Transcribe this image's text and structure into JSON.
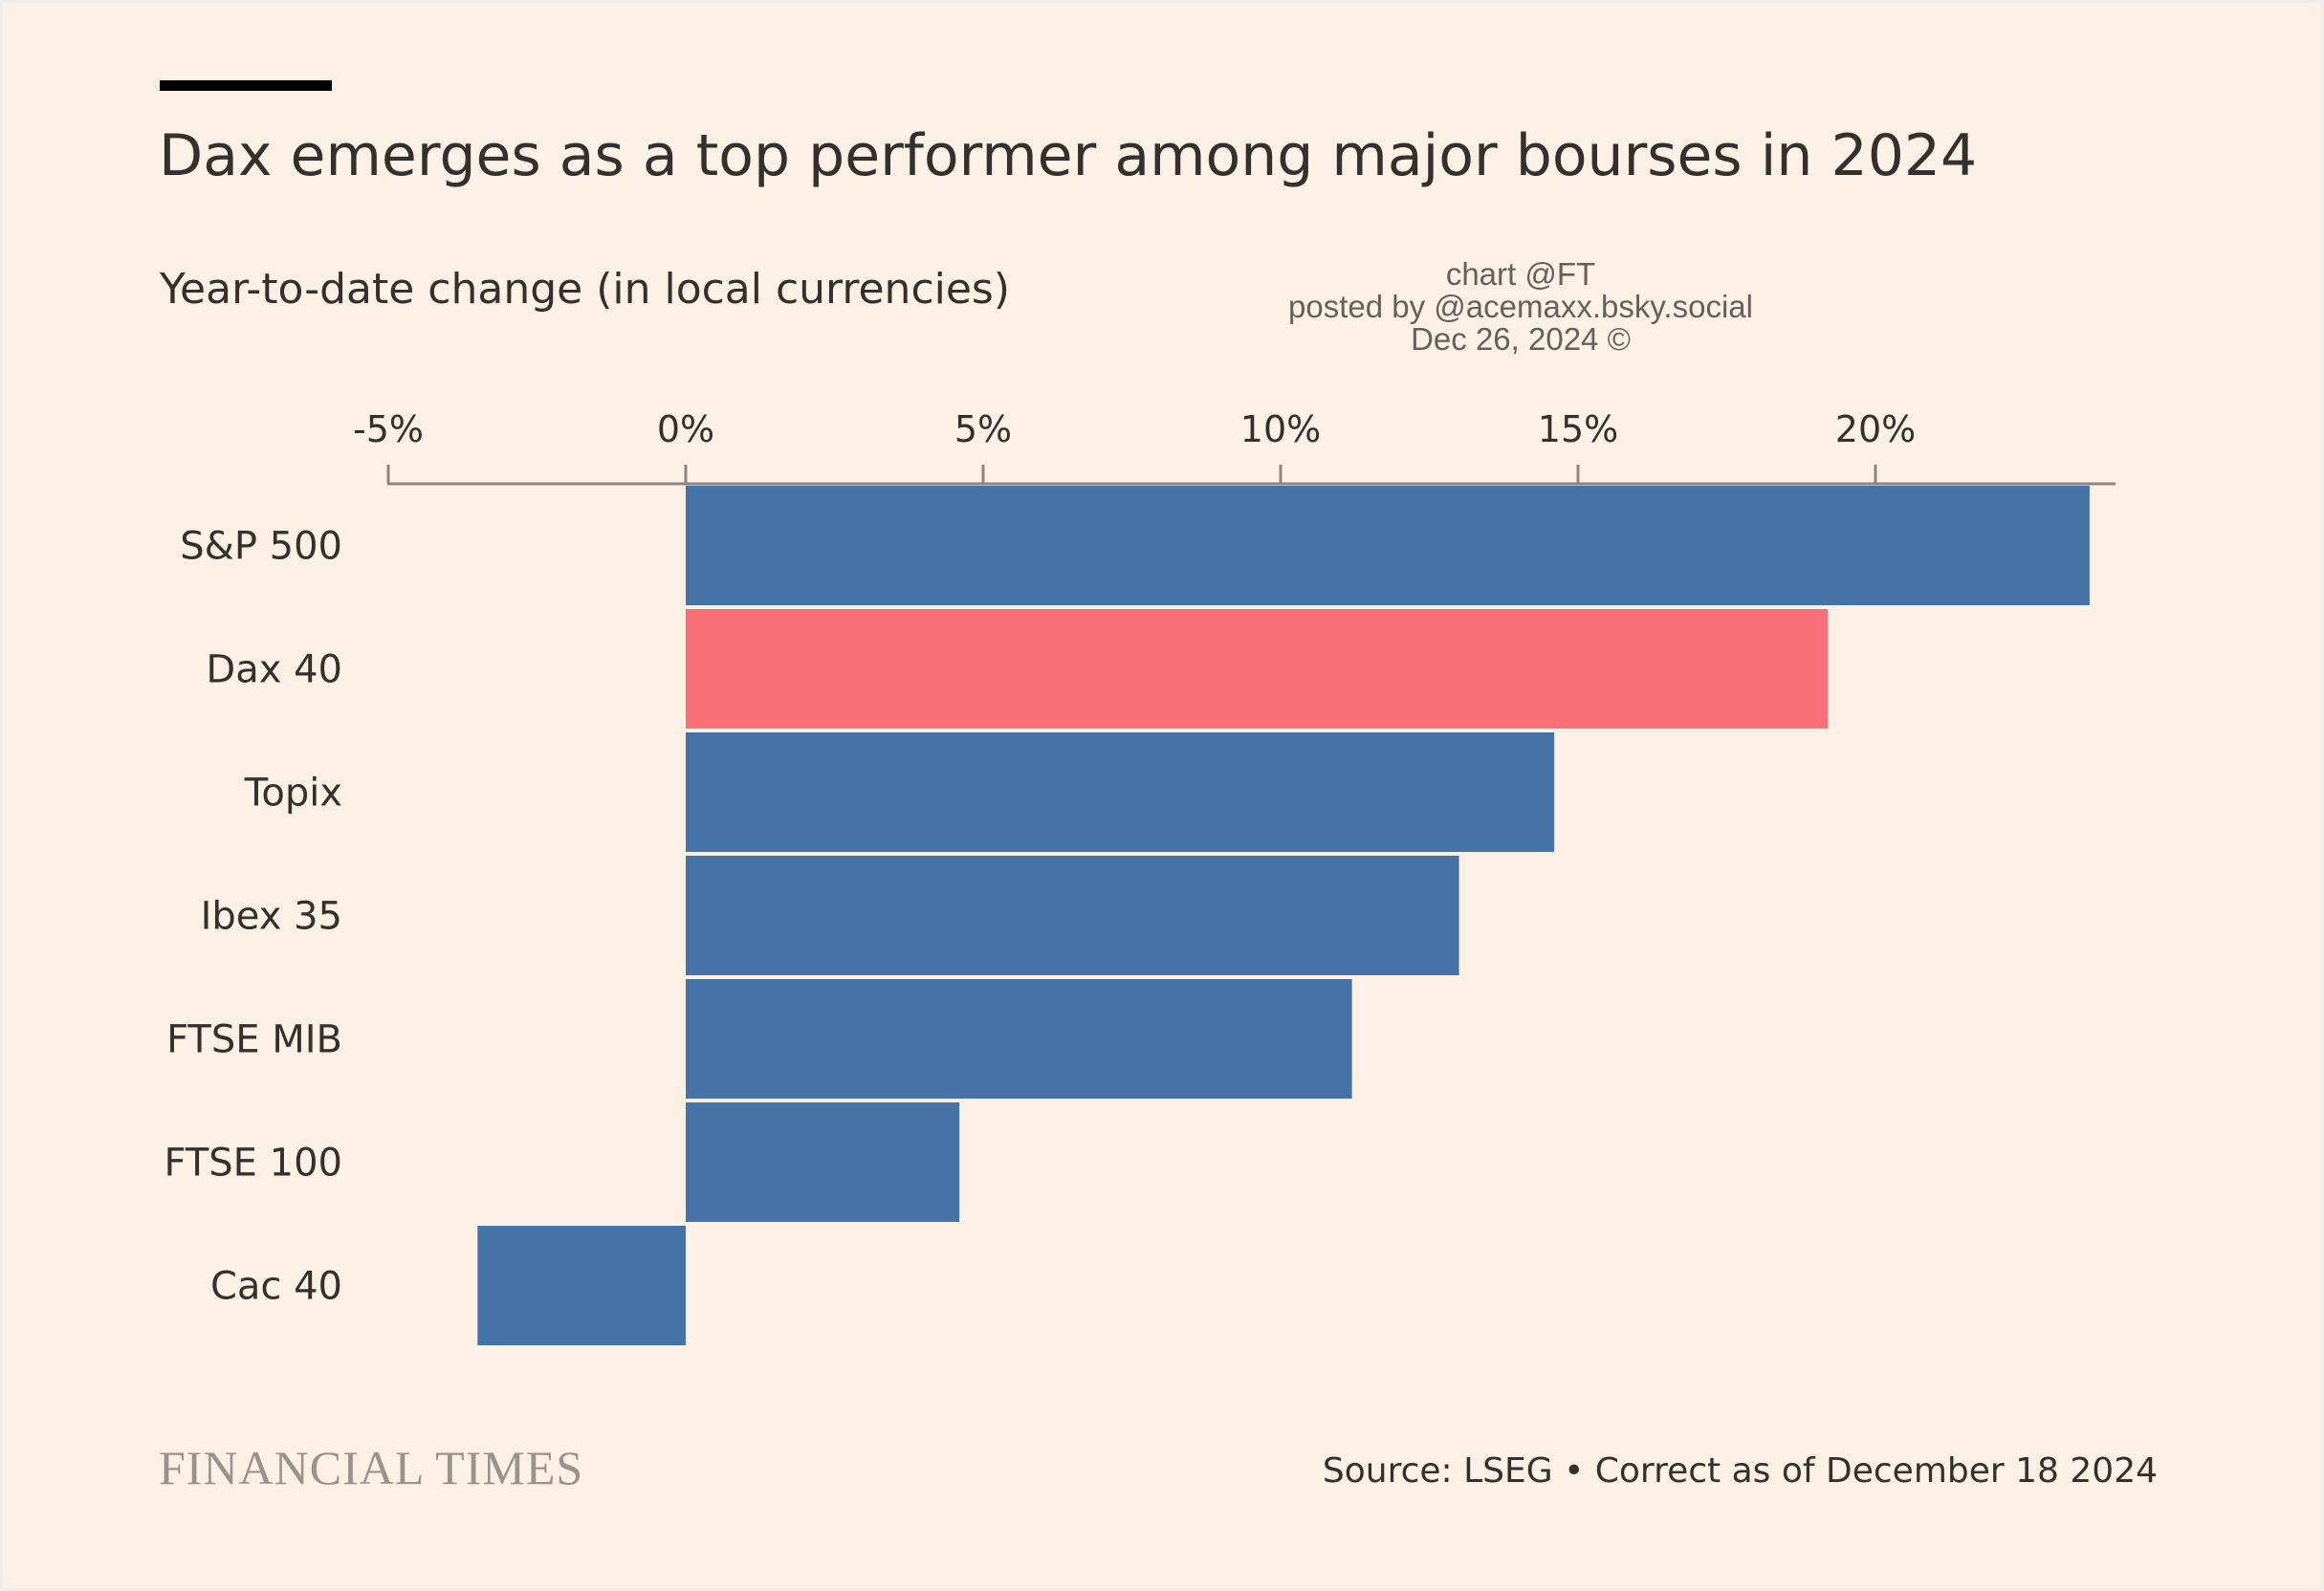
{
  "title": "Dax emerges as a top performer among major bourses in 2024",
  "subtitle": "Year-to-date change (in local currencies)",
  "credit": {
    "line1": "chart @FT",
    "line2": "posted by @acemaxx.bsky.social",
    "line3": "Dec 26, 2024 ©"
  },
  "footer": {
    "logo": "FINANCIAL TIMES",
    "source": "Source: LSEG • Correct as of December 18 2024"
  },
  "colors": {
    "background": "#fdf1e6",
    "bar_default": "#4573a7",
    "bar_highlight": "#f76f77",
    "axis": "#8c8580"
  },
  "chart_data": {
    "type": "bar",
    "orientation": "horizontal",
    "categories": [
      "S&P 500",
      "Dax 40",
      "Topix",
      "Ibex 35",
      "FTSE MIB",
      "FTSE 100",
      "Cac 40"
    ],
    "values": [
      23.6,
      19.2,
      14.6,
      13.0,
      11.2,
      4.6,
      -3.5
    ],
    "highlight": "Dax 40",
    "unit": "%",
    "xlim": [
      -5,
      24
    ],
    "xticks": [
      -5,
      0,
      5,
      10,
      15,
      20
    ],
    "xtick_labels": [
      "-5%",
      "0%",
      "5%",
      "10%",
      "15%",
      "20%"
    ],
    "axis_position": "top",
    "grid": false,
    "legend": "none"
  }
}
